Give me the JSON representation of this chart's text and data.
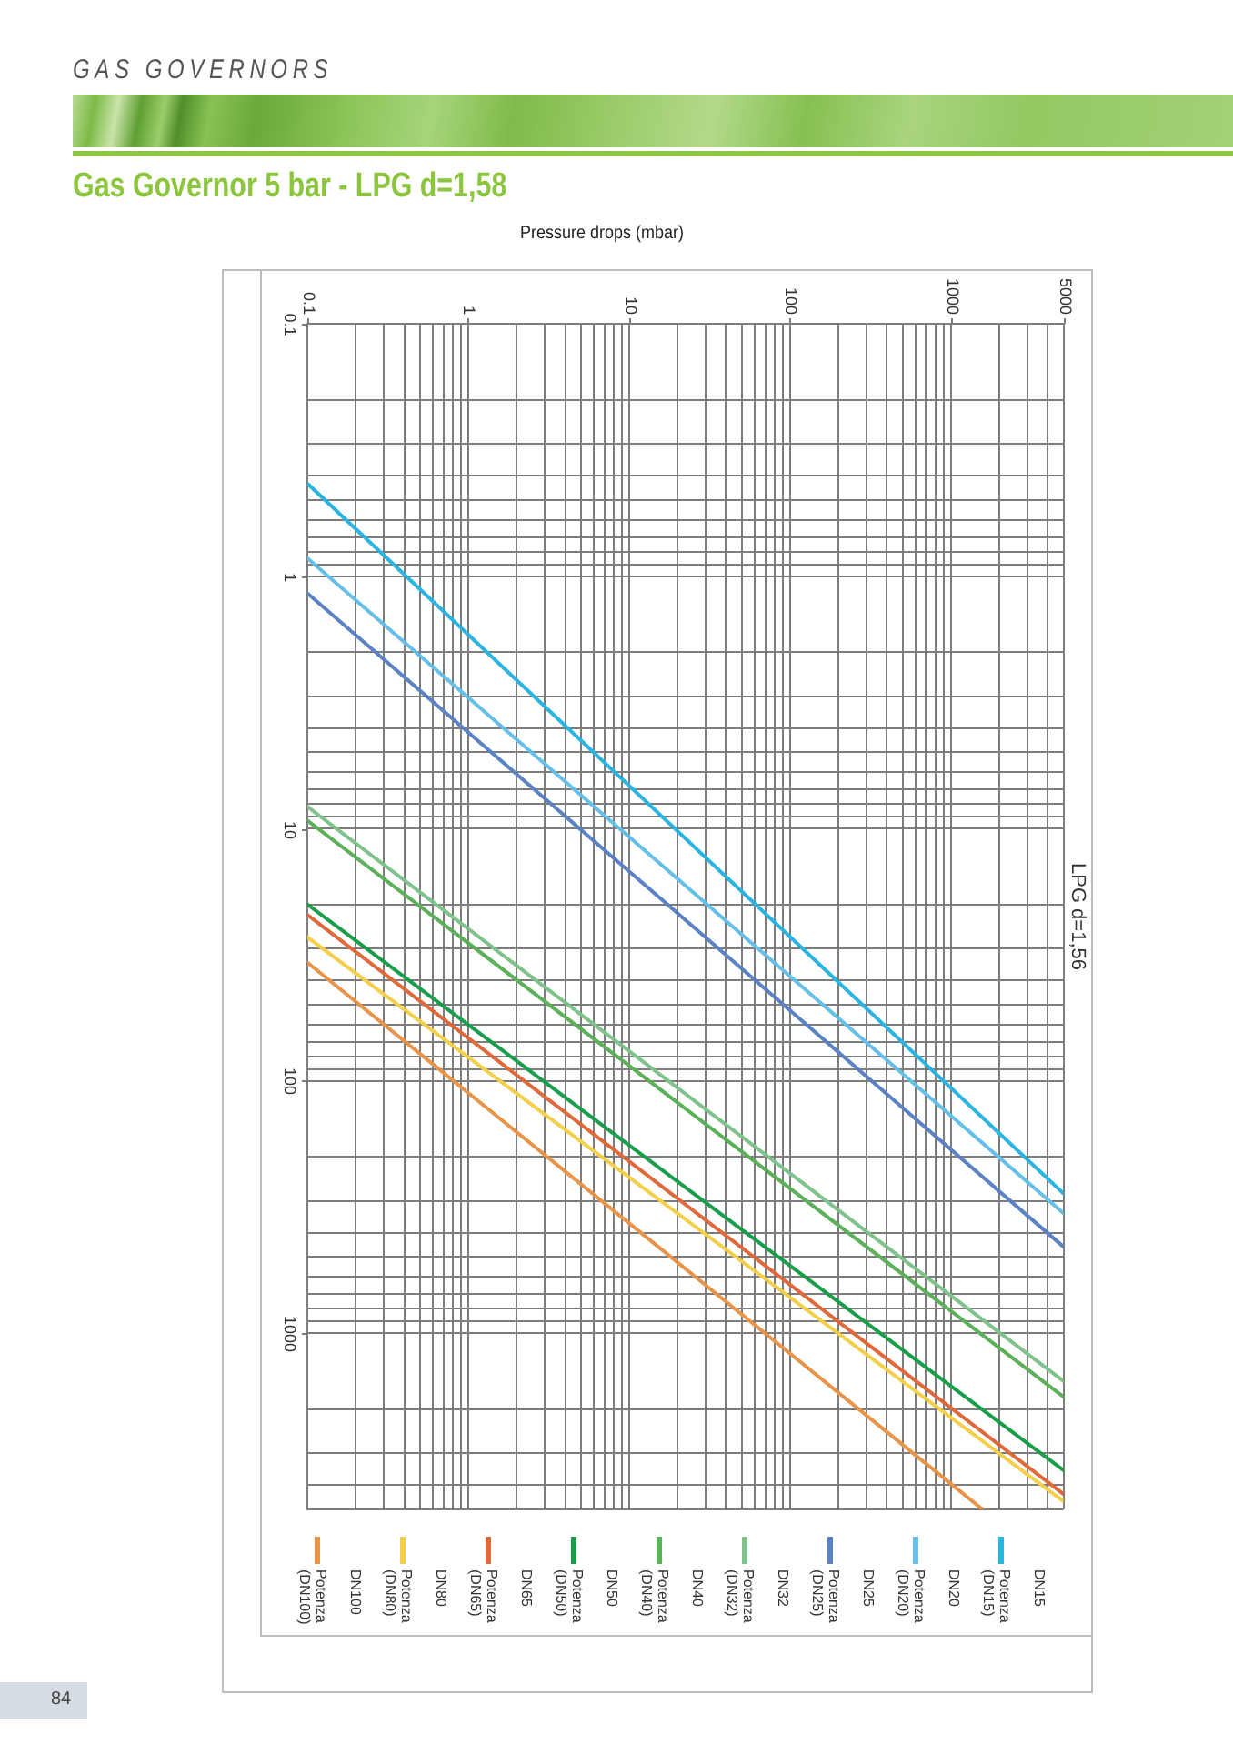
{
  "chart_data": {
    "type": "line",
    "title": "Gas Governor 5 bar - LPG d=1,58",
    "subtitle": "LPG d=1,56",
    "xlabel": "Pressure drops (mbar)",
    "annotations": [
      "GAS GOVERNORS",
      "84"
    ],
    "log": "xy",
    "grid": true,
    "legend": "bottom",
    "xlim": [
      0.1,
      5000
    ],
    "xticks": [
      0.1,
      {
        "value": 0.2,
        "label": null
      },
      {
        "value": 0.3,
        "label": null
      },
      {
        "value": 0.4,
        "label": null
      },
      {
        "value": 0.5,
        "label": null
      },
      {
        "value": 0.6,
        "label": null
      },
      {
        "value": 0.7,
        "label": null
      },
      {
        "value": 0.8,
        "label": null
      },
      {
        "value": 0.9,
        "label": null
      },
      1,
      {
        "value": 2,
        "label": null
      },
      {
        "value": 3,
        "label": null
      },
      {
        "value": 4,
        "label": null
      },
      {
        "value": 5,
        "label": null
      },
      {
        "value": 6,
        "label": null
      },
      {
        "value": 7,
        "label": null
      },
      {
        "value": 8,
        "label": null
      },
      {
        "value": 9,
        "label": null
      },
      10,
      {
        "value": 20,
        "label": null
      },
      {
        "value": 30,
        "label": null
      },
      {
        "value": 40,
        "label": null
      },
      {
        "value": 50,
        "label": null
      },
      {
        "value": 60,
        "label": null
      },
      {
        "value": 70,
        "label": null
      },
      {
        "value": 80,
        "label": null
      },
      {
        "value": 90,
        "label": null
      },
      100,
      {
        "value": 200,
        "label": null
      },
      {
        "value": 300,
        "label": null
      },
      {
        "value": 400,
        "label": null
      },
      {
        "value": 500,
        "label": null
      },
      {
        "value": 600,
        "label": null
      },
      {
        "value": 700,
        "label": null
      },
      {
        "value": 800,
        "label": null
      },
      {
        "value": 900,
        "label": null
      },
      1000,
      {
        "value": 2000,
        "label": null
      },
      {
        "value": 3000,
        "label": null
      },
      {
        "value": 4000,
        "label": null
      },
      5000
    ],
    "ylim": [
      5000,
      0.1
    ],
    "yticks": [
      0.1,
      {
        "value": 0.2,
        "label": null
      },
      {
        "value": 0.3,
        "label": null
      },
      {
        "value": 0.4,
        "label": null
      },
      {
        "value": 0.5,
        "label": null
      },
      {
        "value": 0.6,
        "label": null
      },
      {
        "value": 0.7,
        "label": null
      },
      {
        "value": 0.8,
        "label": null
      },
      {
        "value": 0.9,
        "label": null
      },
      1,
      {
        "value": 2,
        "label": null
      },
      {
        "value": 3,
        "label": null
      },
      {
        "value": 4,
        "label": null
      },
      {
        "value": 5,
        "label": null
      },
      {
        "value": 6,
        "label": null
      },
      {
        "value": 7,
        "label": null
      },
      {
        "value": 8,
        "label": null
      },
      {
        "value": 9,
        "label": null
      },
      10,
      {
        "value": 20,
        "label": null
      },
      {
        "value": 30,
        "label": null
      },
      {
        "value": 40,
        "label": null
      },
      {
        "value": 50,
        "label": null
      },
      {
        "value": 60,
        "label": null
      },
      {
        "value": 70,
        "label": null
      },
      {
        "value": 80,
        "label": null
      },
      {
        "value": 90,
        "label": null
      },
      100,
      {
        "value": 200,
        "label": null
      },
      {
        "value": 300,
        "label": null
      },
      {
        "value": 400,
        "label": null
      },
      {
        "value": 500,
        "label": null
      },
      {
        "value": 600,
        "label": null
      },
      {
        "value": 700,
        "label": null
      },
      {
        "value": 800,
        "label": null
      },
      {
        "value": 900,
        "label": null
      },
      1000,
      {
        "value": 2000,
        "label": null
      },
      {
        "value": 3000,
        "label": null
      },
      {
        "value": 4000,
        "label": null
      },
      {
        "value": 5000,
        "label": null
      }
    ],
    "series": [
      {
        "name": "Potenza (DN100)",
        "color": "#e8954a",
        "x": [
          0.1,
          1570
        ],
        "values": [
          34,
          5000
        ]
      },
      {
        "name": "DN100"
      },
      {
        "name": "Potenza (DN80)",
        "color": "#f3cf4c",
        "x": [
          0.1,
          5000
        ],
        "values": [
          27,
          4650
        ]
      },
      {
        "name": "DN80"
      },
      {
        "name": "Potenza (DN65)",
        "color": "#e0693c",
        "x": [
          0.1,
          5000
        ],
        "values": [
          22,
          4350
        ]
      },
      {
        "name": "DN65"
      },
      {
        "name": "Potenza (DN50)",
        "color": "#1a9e4c",
        "x": [
          0.1,
          5000
        ],
        "values": [
          20,
          3500
        ]
      },
      {
        "name": "DN50"
      },
      {
        "name": "Potenza (DN40)",
        "color": "#5cb05a",
        "x": [
          0.1,
          5000
        ],
        "values": [
          9.3,
          1790
        ]
      },
      {
        "name": "DN40"
      },
      {
        "name": "Potenza (DN32)",
        "color": "#80c28c",
        "x": [
          0.1,
          5000
        ],
        "values": [
          8.2,
          1550
        ]
      },
      {
        "name": "DN32"
      },
      {
        "name": "Potenza (DN25)",
        "color": "#5b82c2",
        "x": [
          0.1,
          5000
        ],
        "values": [
          1.17,
          455
        ]
      },
      {
        "name": "DN25"
      },
      {
        "name": "Potenza (DN20)",
        "color": "#66bfe6",
        "x": [
          0.1,
          5000
        ],
        "values": [
          0.85,
          335
        ]
      },
      {
        "name": "DN20"
      },
      {
        "name": "Potenza (DN15)",
        "color": "#2bb4df",
        "x": [
          0.1,
          5000
        ],
        "values": [
          0.43,
          280
        ]
      },
      {
        "name": "DN15"
      }
    ]
  }
}
